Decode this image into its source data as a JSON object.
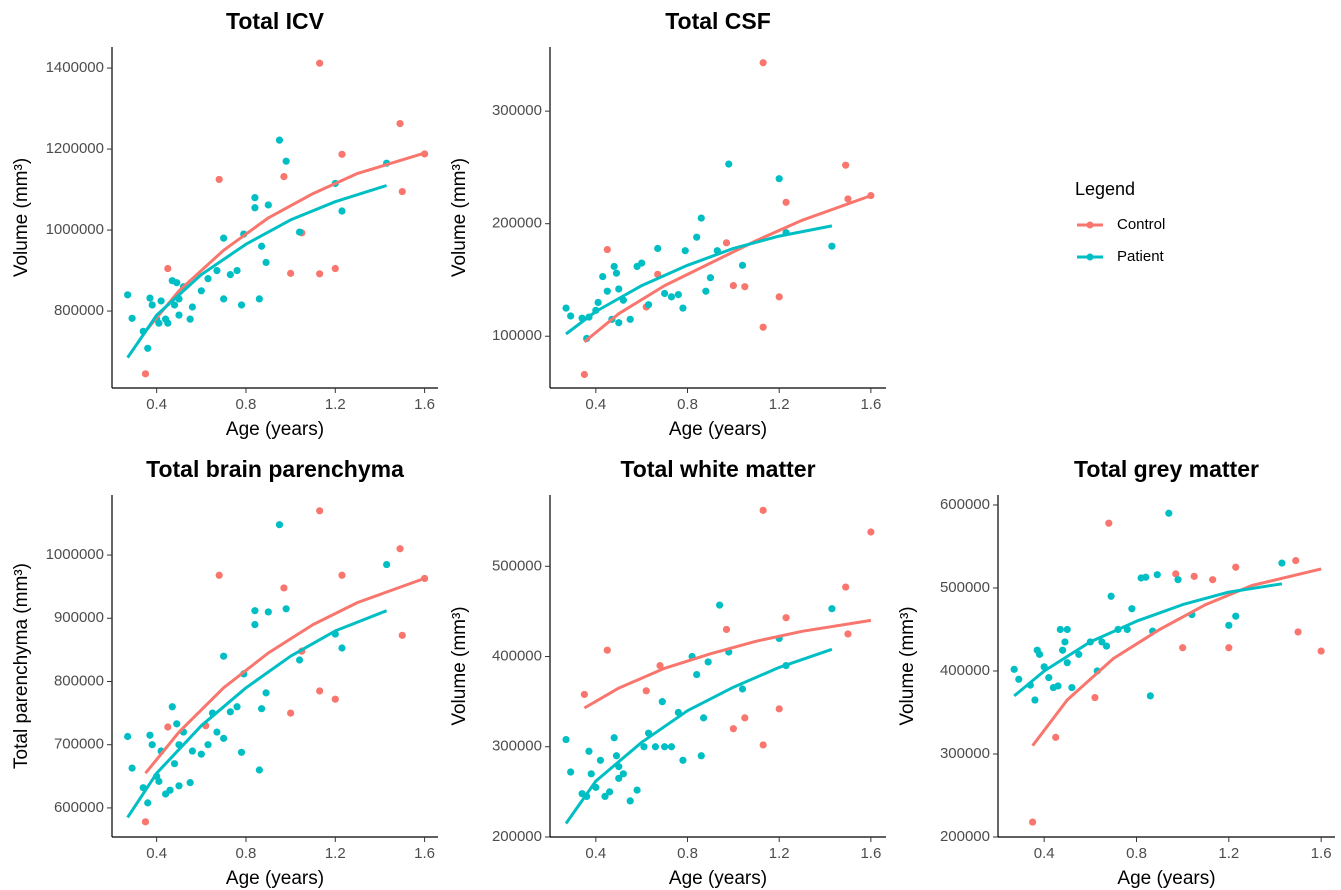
{
  "legend": {
    "title": "Legend",
    "items": [
      {
        "name": "Control",
        "color": "#f8766d"
      },
      {
        "name": "Patient",
        "color": "#00bfc4"
      }
    ]
  },
  "chart_data": [
    {
      "type": "scatter",
      "title": "Total ICV",
      "x_label": "Age (years)",
      "y_label": "Volume (mm³)",
      "xlim": [
        0.2,
        1.66
      ],
      "ylim": [
        610000,
        1452000
      ],
      "xticks": [
        0.4,
        0.8,
        1.2,
        1.6
      ],
      "yticks": [
        800000,
        1000000,
        1200000,
        1400000
      ],
      "series": [
        {
          "color": "#f8766d",
          "x": [
            0.35,
            0.45,
            0.68,
            0.97,
            1.0,
            1.05,
            1.13,
            1.13,
            1.2,
            1.23,
            1.49,
            1.5,
            1.6
          ],
          "values": [
            645000,
            905000,
            1125000,
            1132000,
            893000,
            993000,
            1412000,
            892000,
            905000,
            1187000,
            1263000,
            1095000,
            1188000
          ],
          "fit": {
            "x": [
              0.35,
              0.5,
              0.7,
              0.9,
              1.1,
              1.3,
              1.6
            ],
            "values": [
              750000,
              850000,
              950000,
              1030000,
              1090000,
              1140000,
              1190000
            ]
          }
        },
        {
          "color": "#00bfc4",
          "x": [
            0.27,
            0.29,
            0.34,
            0.36,
            0.37,
            0.38,
            0.4,
            0.41,
            0.42,
            0.44,
            0.45,
            0.47,
            0.48,
            0.49,
            0.5,
            0.5,
            0.52,
            0.55,
            0.56,
            0.6,
            0.63,
            0.67,
            0.7,
            0.7,
            0.73,
            0.76,
            0.78,
            0.79,
            0.84,
            0.84,
            0.86,
            0.87,
            0.89,
            0.9,
            0.95,
            0.98,
            1.04,
            1.2,
            1.23,
            1.43
          ],
          "values": [
            840000,
            782000,
            750000,
            708000,
            832000,
            815000,
            780000,
            770000,
            825000,
            780000,
            770000,
            875000,
            815000,
            870000,
            790000,
            830000,
            860000,
            780000,
            810000,
            850000,
            880000,
            900000,
            980000,
            830000,
            890000,
            900000,
            815000,
            990000,
            1080000,
            1055000,
            830000,
            960000,
            920000,
            1062000,
            1222000,
            1170000,
            995000,
            1115000,
            1047000,
            1165000
          ],
          "fit": {
            "x": [
              0.27,
              0.4,
              0.6,
              0.8,
              1.0,
              1.2,
              1.43
            ],
            "values": [
              685000,
              790000,
              890000,
              965000,
              1025000,
              1070000,
              1110000
            ]
          }
        }
      ]
    },
    {
      "type": "scatter",
      "title": "Total CSF",
      "x_label": "Age (years)",
      "y_label": "Volume (mm³)",
      "xlim": [
        0.2,
        1.666
      ],
      "ylim": [
        54000,
        357000
      ],
      "xticks": [
        0.4,
        0.8,
        1.2,
        1.6
      ],
      "yticks": [
        100000,
        200000,
        300000
      ],
      "series": [
        {
          "color": "#f8766d",
          "x": [
            0.35,
            0.45,
            0.62,
            0.67,
            0.97,
            1.0,
            1.05,
            1.13,
            1.13,
            1.2,
            1.23,
            1.49,
            1.5,
            1.6
          ],
          "values": [
            66000,
            177000,
            126000,
            155000,
            183000,
            145000,
            144000,
            343000,
            108000,
            135000,
            219000,
            252000,
            222000,
            225000
          ],
          "fit": {
            "x": [
              0.35,
              0.5,
              0.7,
              0.9,
              1.1,
              1.3,
              1.6
            ],
            "values": [
              95000,
              120000,
              145000,
              165000,
              185000,
              203000,
              225000
            ]
          }
        },
        {
          "color": "#00bfc4",
          "x": [
            0.27,
            0.29,
            0.34,
            0.36,
            0.37,
            0.4,
            0.41,
            0.43,
            0.45,
            0.47,
            0.48,
            0.49,
            0.5,
            0.5,
            0.52,
            0.55,
            0.58,
            0.6,
            0.63,
            0.67,
            0.7,
            0.73,
            0.76,
            0.78,
            0.79,
            0.84,
            0.86,
            0.88,
            0.9,
            0.93,
            0.98,
            1.04,
            1.2,
            1.23,
            1.43
          ],
          "values": [
            125000,
            118000,
            116000,
            98000,
            117000,
            123000,
            130000,
            153000,
            140000,
            115000,
            162000,
            156000,
            142000,
            112000,
            132000,
            115000,
            162000,
            165000,
            128000,
            178000,
            138000,
            135000,
            137000,
            125000,
            176000,
            188000,
            205000,
            140000,
            152000,
            176000,
            253000,
            163000,
            240000,
            192000,
            180000
          ],
          "fit": {
            "x": [
              0.27,
              0.4,
              0.6,
              0.8,
              1.0,
              1.2,
              1.43
            ],
            "values": [
              102000,
              122000,
              145000,
              163000,
              178000,
              189000,
              198000
            ]
          }
        }
      ]
    },
    {
      "type": "scatter",
      "title": "Total brain parenchyma",
      "x_label": "Age (years)",
      "y_label": "Total parenchyma (mm³)",
      "xlim": [
        0.2,
        1.66
      ],
      "ylim": [
        554000,
        1095000
      ],
      "xticks": [
        0.4,
        0.8,
        1.2,
        1.6
      ],
      "yticks": [
        600000,
        700000,
        800000,
        900000,
        1000000
      ],
      "series": [
        {
          "color": "#f8766d",
          "x": [
            0.35,
            0.45,
            0.62,
            0.68,
            0.97,
            1.0,
            1.05,
            1.13,
            1.13,
            1.2,
            1.23,
            1.49,
            1.5,
            1.6
          ],
          "values": [
            578000,
            728000,
            730000,
            968000,
            948000,
            750000,
            848000,
            1070000,
            785000,
            772000,
            968000,
            1010000,
            873000,
            963000
          ],
          "fit": {
            "x": [
              0.35,
              0.5,
              0.7,
              0.9,
              1.1,
              1.3,
              1.6
            ],
            "values": [
              655000,
              720000,
              790000,
              845000,
              890000,
              925000,
              963000
            ]
          }
        },
        {
          "color": "#00bfc4",
          "x": [
            0.27,
            0.29,
            0.34,
            0.36,
            0.37,
            0.38,
            0.4,
            0.41,
            0.42,
            0.44,
            0.46,
            0.47,
            0.48,
            0.49,
            0.5,
            0.5,
            0.52,
            0.55,
            0.56,
            0.6,
            0.63,
            0.65,
            0.67,
            0.7,
            0.7,
            0.73,
            0.76,
            0.78,
            0.79,
            0.84,
            0.84,
            0.86,
            0.87,
            0.89,
            0.9,
            0.95,
            0.98,
            1.04,
            1.2,
            1.23,
            1.43
          ],
          "values": [
            713000,
            663000,
            632000,
            608000,
            715000,
            700000,
            650000,
            642000,
            690000,
            622000,
            628000,
            760000,
            670000,
            733000,
            700000,
            635000,
            720000,
            640000,
            690000,
            685000,
            700000,
            750000,
            720000,
            840000,
            710000,
            752000,
            760000,
            688000,
            812000,
            912000,
            890000,
            660000,
            757000,
            782000,
            910000,
            1048000,
            915000,
            834000,
            875000,
            853000,
            985000
          ],
          "fit": {
            "x": [
              0.27,
              0.4,
              0.6,
              0.8,
              1.0,
              1.2,
              1.43
            ],
            "values": [
              585000,
              655000,
              730000,
              790000,
              840000,
              880000,
              912000
            ]
          }
        }
      ]
    },
    {
      "type": "scatter",
      "title": "Total white matter",
      "x_label": "Age (years)",
      "y_label": "Volume (mm³)",
      "xlim": [
        0.2,
        1.666
      ],
      "ylim": [
        200000,
        579000
      ],
      "xticks": [
        0.4,
        0.8,
        1.2,
        1.6
      ],
      "yticks": [
        200000,
        300000,
        400000,
        500000
      ],
      "series": [
        {
          "color": "#f8766d",
          "x": [
            0.35,
            0.45,
            0.62,
            0.68,
            0.97,
            1.0,
            1.05,
            1.13,
            1.13,
            1.2,
            1.23,
            1.49,
            1.5,
            1.6
          ],
          "values": [
            358000,
            407000,
            362000,
            390000,
            430000,
            320000,
            332000,
            562000,
            302000,
            342000,
            443000,
            477000,
            425000,
            538000
          ],
          "fit": {
            "x": [
              0.35,
              0.5,
              0.7,
              0.9,
              1.1,
              1.3,
              1.6
            ],
            "values": [
              343000,
              365000,
              387000,
              403000,
              417000,
              428000,
              440000
            ]
          }
        },
        {
          "color": "#00bfc4",
          "x": [
            0.27,
            0.29,
            0.34,
            0.36,
            0.37,
            0.38,
            0.4,
            0.42,
            0.44,
            0.46,
            0.48,
            0.49,
            0.5,
            0.5,
            0.52,
            0.55,
            0.58,
            0.61,
            0.63,
            0.66,
            0.69,
            0.7,
            0.73,
            0.76,
            0.78,
            0.82,
            0.84,
            0.86,
            0.87,
            0.89,
            0.94,
            0.98,
            1.04,
            1.2,
            1.23,
            1.43
          ],
          "values": [
            308000,
            272000,
            248000,
            245000,
            295000,
            270000,
            255000,
            285000,
            245000,
            250000,
            310000,
            290000,
            278000,
            265000,
            270000,
            240000,
            252000,
            300000,
            315000,
            300000,
            350000,
            300000,
            300000,
            338000,
            285000,
            400000,
            380000,
            290000,
            332000,
            394000,
            457000,
            405000,
            364000,
            420000,
            390000,
            453000
          ],
          "fit": {
            "x": [
              0.27,
              0.4,
              0.6,
              0.8,
              1.0,
              1.2,
              1.43
            ],
            "values": [
              215000,
              262000,
              305000,
              340000,
              366000,
              388000,
              408000
            ]
          }
        }
      ]
    },
    {
      "type": "scatter",
      "title": "Total grey matter",
      "x_label": "Age (years)",
      "y_label": "Volume (mm³)",
      "xlim": [
        0.2,
        1.66
      ],
      "ylim": [
        200000,
        612000
      ],
      "xticks": [
        0.4,
        0.8,
        1.2,
        1.6
      ],
      "yticks": [
        200000,
        300000,
        400000,
        500000,
        600000
      ],
      "series": [
        {
          "color": "#f8766d",
          "x": [
            0.35,
            0.45,
            0.62,
            0.68,
            0.97,
            1.0,
            1.05,
            1.13,
            1.2,
            1.23,
            1.49,
            1.5,
            1.6
          ],
          "values": [
            218000,
            320000,
            368000,
            578000,
            517000,
            428000,
            514000,
            510000,
            428000,
            525000,
            533000,
            447000,
            424000
          ],
          "fit": {
            "x": [
              0.35,
              0.5,
              0.7,
              0.9,
              1.1,
              1.3,
              1.6
            ],
            "values": [
              310000,
              365000,
              415000,
              450000,
              480000,
              503000,
              523000
            ]
          }
        },
        {
          "color": "#00bfc4",
          "x": [
            0.27,
            0.29,
            0.34,
            0.36,
            0.37,
            0.38,
            0.4,
            0.42,
            0.44,
            0.46,
            0.47,
            0.48,
            0.49,
            0.5,
            0.5,
            0.52,
            0.55,
            0.6,
            0.63,
            0.65,
            0.67,
            0.69,
            0.72,
            0.76,
            0.78,
            0.82,
            0.84,
            0.86,
            0.87,
            0.89,
            0.94,
            0.98,
            1.04,
            1.2,
            1.23,
            1.43
          ],
          "values": [
            402000,
            390000,
            383000,
            365000,
            425000,
            420000,
            405000,
            392000,
            380000,
            382000,
            450000,
            425000,
            435000,
            450000,
            410000,
            380000,
            420000,
            435000,
            400000,
            435000,
            430000,
            490000,
            450000,
            450000,
            475000,
            512000,
            513000,
            370000,
            448000,
            516000,
            590000,
            510000,
            468000,
            455000,
            466000,
            530000
          ],
          "fit": {
            "x": [
              0.27,
              0.4,
              0.6,
              0.8,
              1.0,
              1.2,
              1.43
            ],
            "values": [
              370000,
              400000,
              435000,
              460000,
              480000,
              495000,
              505000
            ]
          }
        }
      ]
    }
  ]
}
